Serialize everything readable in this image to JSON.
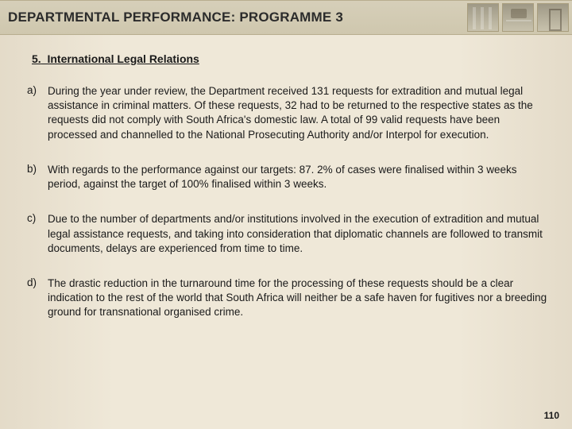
{
  "header": {
    "title": "DEPARTMENTAL PERFORMANCE: PROGRAMME  3"
  },
  "section": {
    "number": "5.",
    "heading": "International Legal Relations"
  },
  "items": [
    {
      "marker": "a)",
      "text": "During the year under review, the Department received 131 requests for extradition and mutual legal assistance in criminal matters. Of these requests, 32 had to be returned to the respective states as the requests did not comply with South Africa's domestic law. A total of 99 valid requests have been processed and channelled to the National Prosecuting Authority and/or Interpol for execution."
    },
    {
      "marker": "b)",
      "text": "With regards to the performance against our targets: 87. 2% of  cases were finalised within 3 weeks period, against the target of 100% finalised within 3 weeks."
    },
    {
      "marker": "c)",
      "text": "Due to the number of departments and/or institutions involved in the execution of extradition and mutual legal assistance requests, and taking into consideration that diplomatic channels are followed to transmit documents, delays are experienced from time to time."
    },
    {
      "marker": "d)",
      "text": "The drastic reduction in the turnaround time for the processing of these requests should be a clear indication to the rest of the world that South Africa will neither be a safe haven for fugitives nor a breeding ground for transnational organised crime."
    }
  ],
  "pageNumber": "110",
  "colors": {
    "background": "#efe8d8",
    "headerBar": "#cfc7ae",
    "text": "#1a1a1a"
  }
}
